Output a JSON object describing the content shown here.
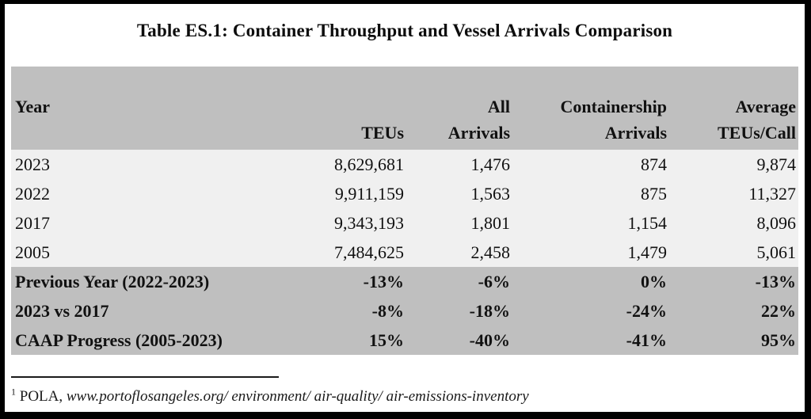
{
  "title": "Table ES.1:  Container Throughput and Vessel Arrivals Comparison",
  "colors": {
    "header_bg": "#bfbfbf",
    "data_row_bg": "#f0f0f0",
    "frame": "#000000",
    "text": "#111111"
  },
  "table": {
    "header": {
      "year_line1": "Year",
      "teus_line2": "TEUs",
      "all_line1": "All",
      "all_line2": "Arrivals",
      "cs_line1": "Containership",
      "cs_line2": "Arrivals",
      "avg_line1": "Average",
      "avg_line2": "TEUs/Call"
    },
    "data_rows": [
      {
        "year": "2023",
        "teus": "8,629,681",
        "all": "1,476",
        "cs": "874",
        "avg": "9,874"
      },
      {
        "year": "2022",
        "teus": "9,911,159",
        "all": "1,563",
        "cs": "875",
        "avg": "11,327"
      },
      {
        "year": "2017",
        "teus": "9,343,193",
        "all": "1,801",
        "cs": "1,154",
        "avg": "8,096"
      },
      {
        "year": "2005",
        "teus": "7,484,625",
        "all": "2,458",
        "cs": "1,479",
        "avg": "5,061"
      }
    ],
    "summary_rows": [
      {
        "label": "Previous Year (2022-2023)",
        "teus": "-13%",
        "all": "-6%",
        "cs": "0%",
        "avg": "-13%"
      },
      {
        "label": "2023 vs 2017",
        "teus": "-8%",
        "all": "-18%",
        "cs": "-24%",
        "avg": "22%"
      },
      {
        "label": "CAAP Progress (2005-2023)",
        "teus": "15%",
        "all": "-40%",
        "cs": "-41%",
        "avg": "95%"
      }
    ]
  },
  "footnote": {
    "marker": "1",
    "source": "POLA,",
    "url": "www.portoflosangeles.org/ environment/ air-quality/ air-emissions-inventory"
  }
}
